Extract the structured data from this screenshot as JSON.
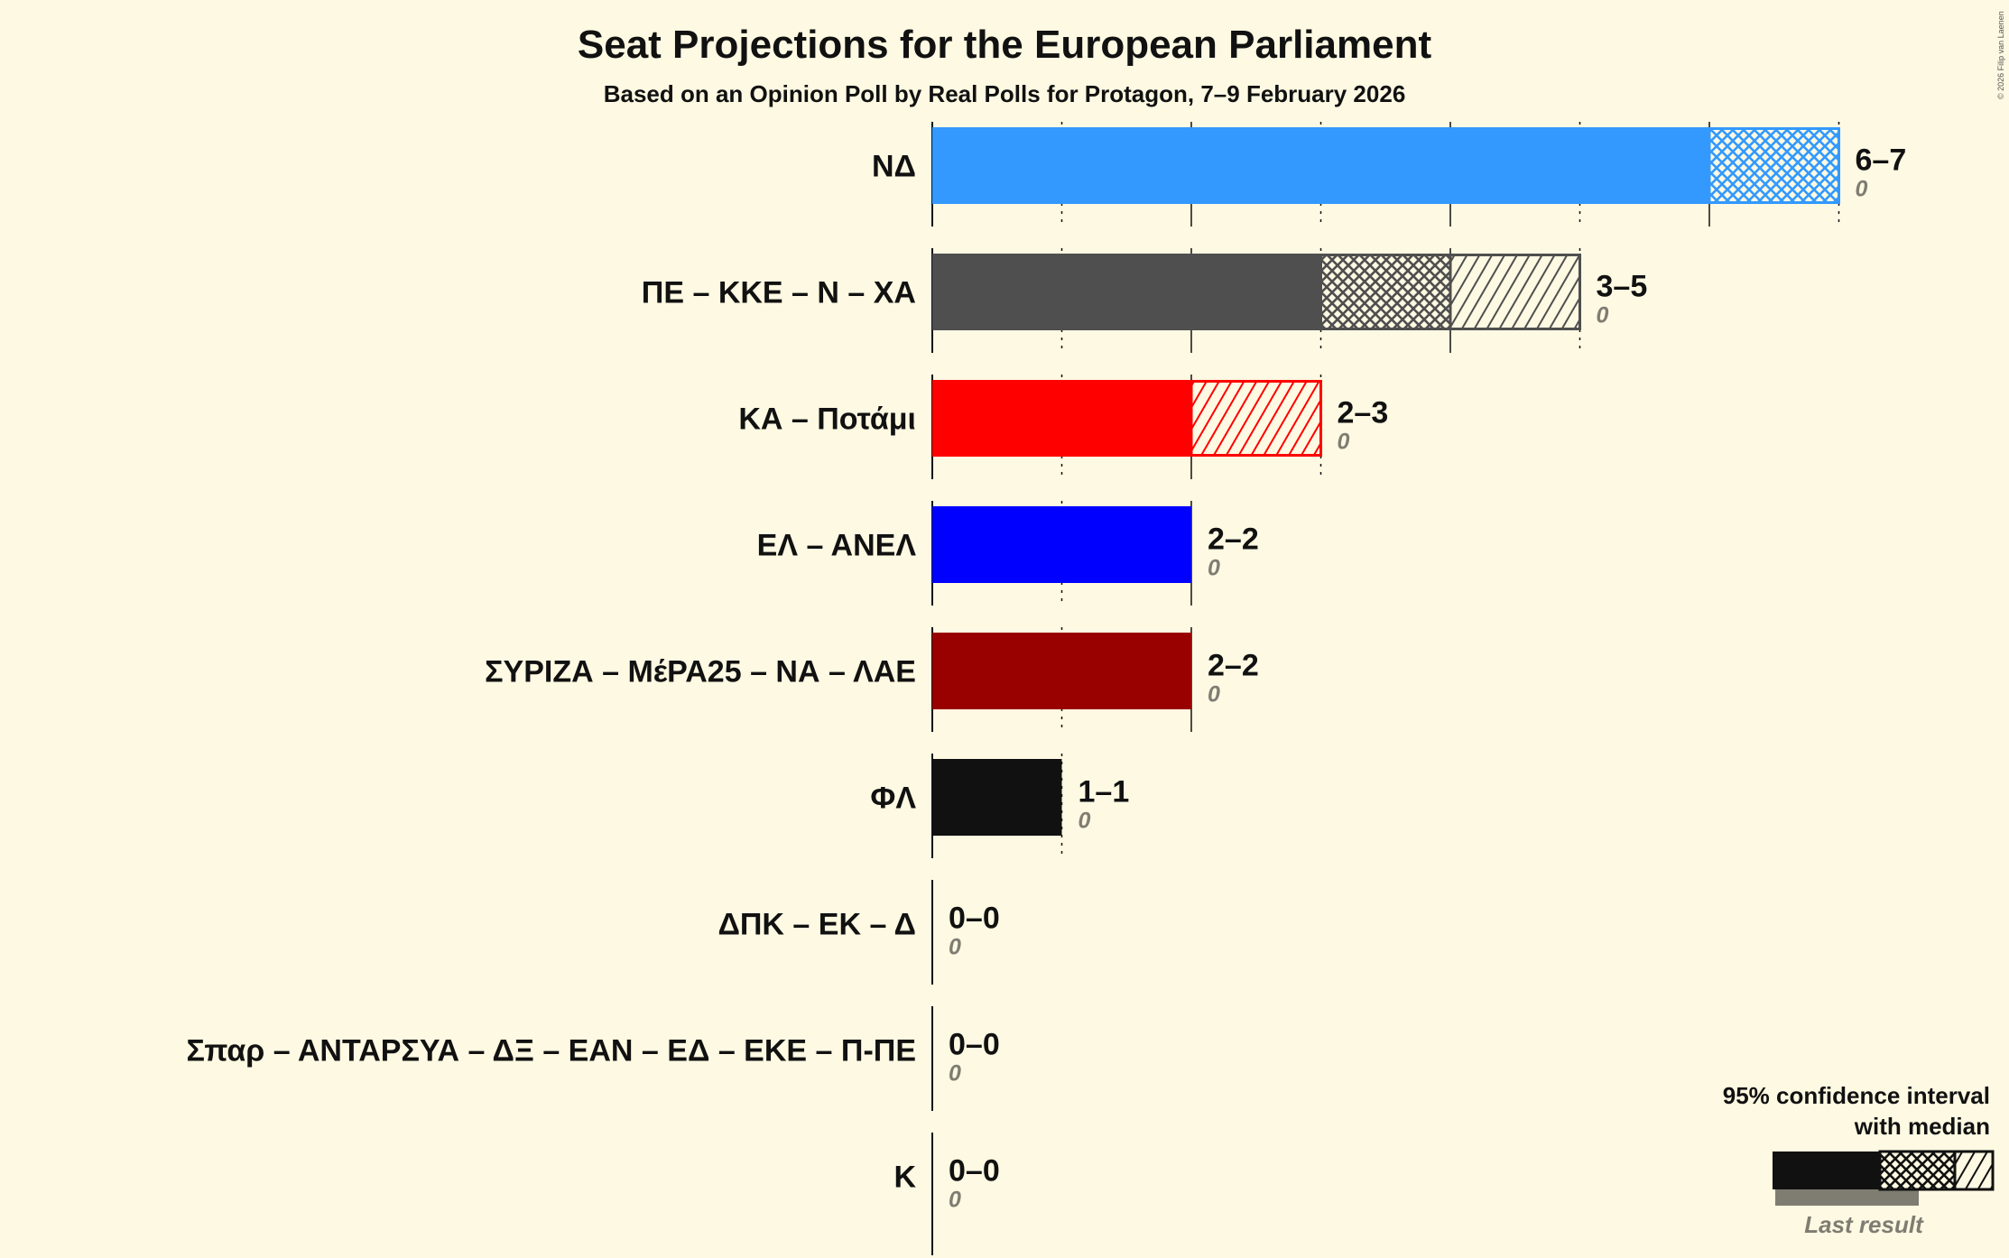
{
  "chart_data": {
    "type": "bar",
    "title": "Seat Projections for the European Parliament",
    "subtitle": "Based on an Opinion Poll by Real Polls for Protagon, 7–9 February 2026",
    "copyright": "© 2026 Filip van Laenen",
    "xlim": [
      0,
      7
    ],
    "parties": [
      {
        "name": "ΝΔ",
        "color": "#3399ff",
        "low": 6,
        "median": 7,
        "high": 7,
        "range_label": "6–7",
        "last_result": 0
      },
      {
        "name": "ΠΕ – ΚΚΕ – Ν – ΧΑ",
        "color": "#4f4f4f",
        "low": 3,
        "median": 4,
        "high": 5,
        "range_label": "3–5",
        "last_result": 0
      },
      {
        "name": "ΚΑ – Ποτάμι",
        "color": "#ff0000",
        "low": 2,
        "median": 2,
        "high": 3,
        "range_label": "2–3",
        "last_result": 0
      },
      {
        "name": "ΕΛ – ΑΝΕΛ",
        "color": "#0000ff",
        "low": 2,
        "median": 2,
        "high": 2,
        "range_label": "2–2",
        "last_result": 0
      },
      {
        "name": "ΣΥΡΙΖΑ – ΜέΡΑ25 – ΝΑ – ΛΑΕ",
        "color": "#990000",
        "low": 2,
        "median": 2,
        "high": 2,
        "range_label": "2–2",
        "last_result": 0
      },
      {
        "name": "ΦΛ",
        "color": "#111111",
        "low": 1,
        "median": 1,
        "high": 1,
        "range_label": "1–1",
        "last_result": 0
      },
      {
        "name": "ΔΠΚ – ΕΚ – Δ",
        "color": "#888888",
        "low": 0,
        "median": 0,
        "high": 0,
        "range_label": "0–0",
        "last_result": 0
      },
      {
        "name": "Σπαρ – ΑΝΤΑΡΣΥΑ – ΔΞ – ΕΑΝ – ΕΔ – ΕΚΕ – Π-ΠΕ",
        "color": "#888888",
        "low": 0,
        "median": 0,
        "high": 0,
        "range_label": "0–0",
        "last_result": 0
      },
      {
        "name": "Κ",
        "color": "#888888",
        "low": 0,
        "median": 0,
        "high": 0,
        "range_label": "0–0",
        "last_result": 0
      }
    ],
    "legend": {
      "line1": "95% confidence interval",
      "line2": "with median",
      "last_result": "Last result",
      "placement": "bottom-right"
    }
  }
}
